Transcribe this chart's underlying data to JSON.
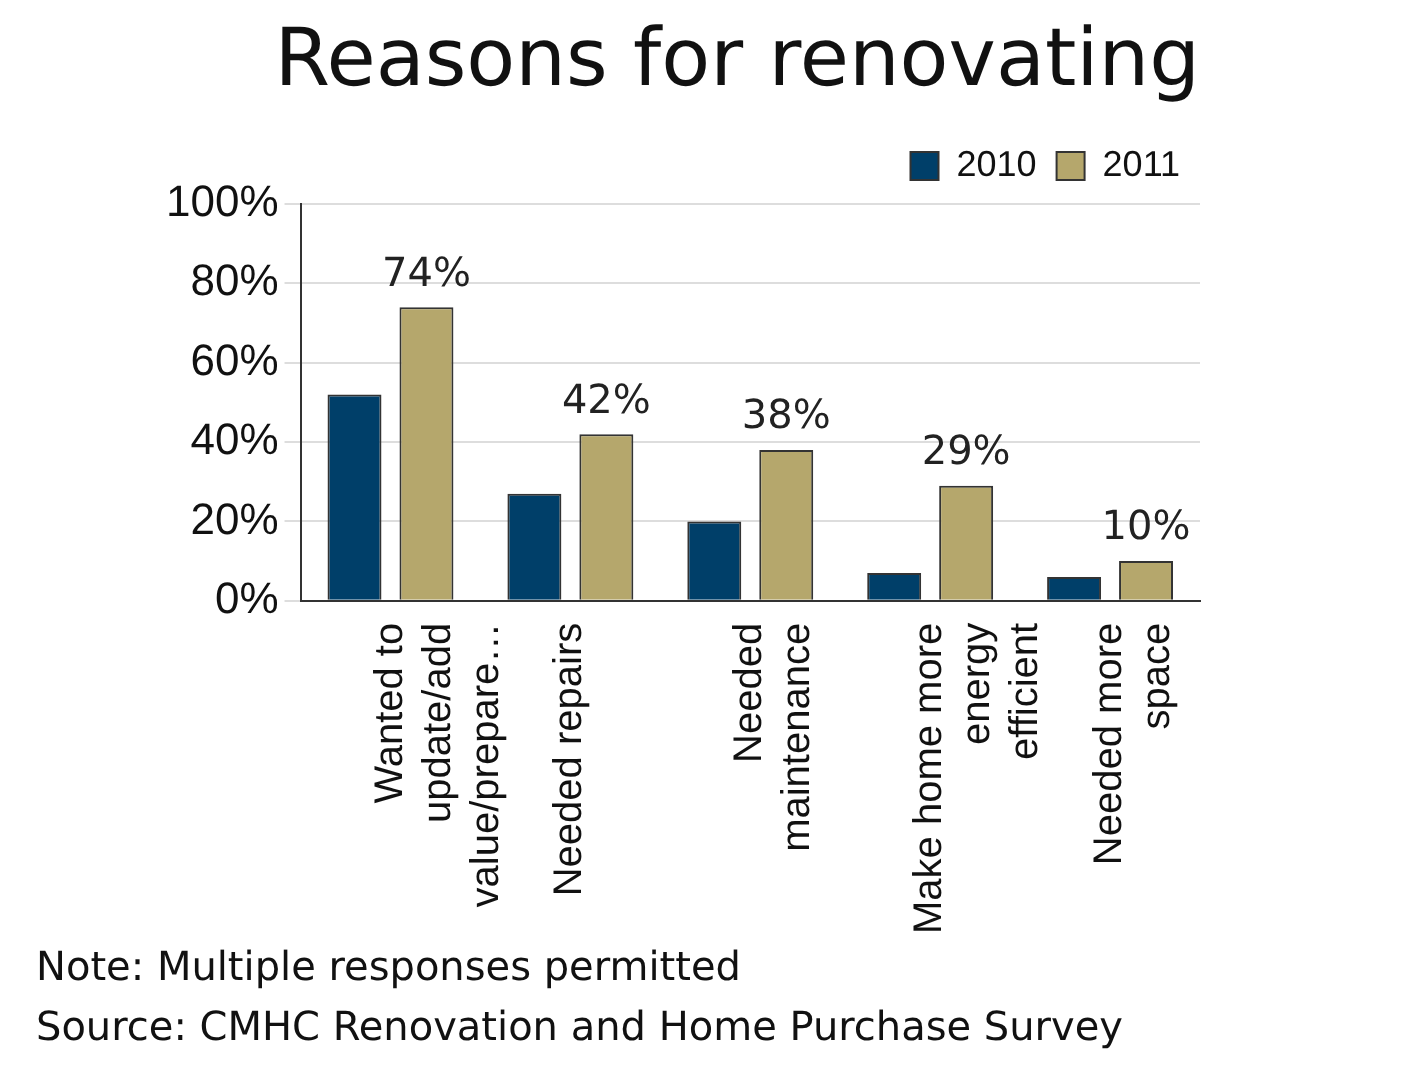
{
  "chart_data": {
    "type": "bar",
    "title": "Reasons for renovating",
    "categories": [
      "Wanted to update/add value/prepare…",
      "Needed repairs",
      "Needed maintenance",
      "Make home more energy efficient",
      "Needed more space"
    ],
    "series": [
      {
        "name": "2010",
        "color": "#003f69",
        "values": [
          52,
          27,
          20,
          7,
          6
        ]
      },
      {
        "name": "2011",
        "color": "#b5a76c",
        "values": [
          74,
          42,
          38,
          29,
          10
        ],
        "value_labels": [
          "74%",
          "42%",
          "38%",
          "29%",
          "10%"
        ]
      }
    ],
    "ylim": [
      0,
      100
    ],
    "yticks": [
      {
        "value": 0,
        "label": "0%"
      },
      {
        "value": 20,
        "label": "20%"
      },
      {
        "value": 40,
        "label": "40%"
      },
      {
        "value": 60,
        "label": "60%"
      },
      {
        "value": 80,
        "label": "80%"
      },
      {
        "value": 100,
        "label": "100%"
      }
    ],
    "grid": "y",
    "legend": "top right",
    "annotations": [
      "Note: Multiple responses permitted",
      "Source: CMHC Renovation and Home Purchase Survey"
    ]
  }
}
